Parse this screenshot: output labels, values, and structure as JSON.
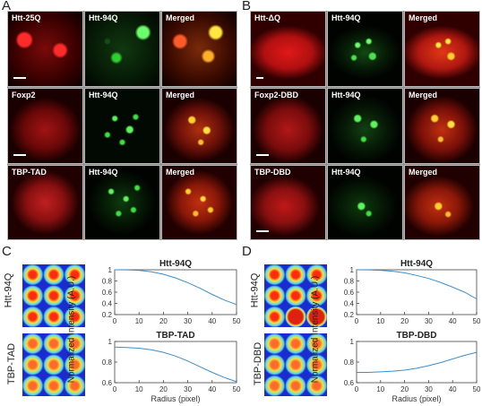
{
  "panel_labels": {
    "a": "A",
    "b": "B",
    "c": "C",
    "d": "D"
  },
  "panel_a": {
    "rows": [
      {
        "labels": [
          "Htt-25Q",
          "Htt-94Q",
          "Merged"
        ]
      },
      {
        "labels": [
          "Foxp2",
          "Htt-94Q",
          "Merged"
        ]
      },
      {
        "labels": [
          "TBP-TAD",
          "Htt-94Q",
          "Merged"
        ]
      }
    ]
  },
  "panel_b": {
    "rows": [
      {
        "labels": [
          "Htt-ΔQ",
          "Htt-94Q",
          "Merged"
        ]
      },
      {
        "labels": [
          "Foxp2-DBD",
          "Htt-94Q",
          "Merged"
        ]
      },
      {
        "labels": [
          "TBP-DBD",
          "Htt-94Q",
          "Merged"
        ]
      }
    ]
  },
  "panel_c": {
    "heatmap_labels": [
      "Htt-94Q",
      "TBP-TAD"
    ]
  },
  "panel_d": {
    "heatmap_labels": [
      "Htt-94Q",
      "TBP-DBD"
    ]
  },
  "chart_data": [
    {
      "type": "line",
      "title": "Htt-94Q",
      "xlabel": "",
      "ylabel": "",
      "x": [
        0,
        5,
        10,
        15,
        20,
        25,
        30,
        35,
        40,
        45,
        50
      ],
      "series": [
        {
          "values": [
            1.0,
            0.998,
            0.99,
            0.965,
            0.92,
            0.855,
            0.77,
            0.67,
            0.56,
            0.46,
            0.38
          ]
        }
      ],
      "xlim": [
        0,
        50
      ],
      "ylim": [
        0.2,
        1.0
      ],
      "xticks": [
        "0",
        "10",
        "20",
        "30",
        "40",
        "50"
      ],
      "yticks": [
        "0.2",
        "0.4",
        "0.6",
        "0.8",
        "1"
      ]
    },
    {
      "type": "line",
      "title": "TBP-TAD",
      "xlabel": "Radius (pixel)",
      "ylabel": "",
      "x": [
        0,
        5,
        10,
        15,
        20,
        25,
        30,
        35,
        40,
        45,
        50
      ],
      "series": [
        {
          "values": [
            0.945,
            0.942,
            0.935,
            0.92,
            0.895,
            0.858,
            0.81,
            0.755,
            0.7,
            0.65,
            0.61
          ]
        }
      ],
      "xlim": [
        0,
        50
      ],
      "ylim": [
        0.6,
        1.0
      ],
      "xticks": [
        "0",
        "10",
        "20",
        "30",
        "40",
        "50"
      ],
      "yticks": [
        "0.6",
        "0.8",
        "1"
      ]
    },
    {
      "type": "line",
      "title": "Htt-94Q",
      "xlabel": "",
      "ylabel": "",
      "x": [
        0,
        5,
        10,
        15,
        20,
        25,
        30,
        35,
        40,
        45,
        50
      ],
      "series": [
        {
          "values": [
            1.0,
            0.998,
            0.99,
            0.975,
            0.945,
            0.9,
            0.845,
            0.775,
            0.69,
            0.6,
            0.48
          ]
        }
      ],
      "xlim": [
        0,
        50
      ],
      "ylim": [
        0.2,
        1.0
      ],
      "xticks": [
        "0",
        "10",
        "20",
        "30",
        "40",
        "50"
      ],
      "yticks": [
        "0.2",
        "0.4",
        "0.6",
        "0.8",
        "1"
      ]
    },
    {
      "type": "line",
      "title": "TBP-DBD",
      "xlabel": "Radius (pixel)",
      "ylabel": "",
      "x": [
        0,
        5,
        10,
        15,
        20,
        25,
        30,
        35,
        40,
        45,
        50
      ],
      "series": [
        {
          "values": [
            0.7,
            0.7,
            0.705,
            0.712,
            0.722,
            0.74,
            0.765,
            0.795,
            0.83,
            0.865,
            0.895
          ]
        }
      ],
      "xlim": [
        0,
        50
      ],
      "ylim": [
        0.6,
        1.0
      ],
      "xticks": [
        "0",
        "10",
        "20",
        "30",
        "40",
        "50"
      ],
      "yticks": [
        "0.6",
        "0.8",
        "1"
      ]
    }
  ],
  "shared_ylabel": "Normalized Intensity (A.U.)"
}
